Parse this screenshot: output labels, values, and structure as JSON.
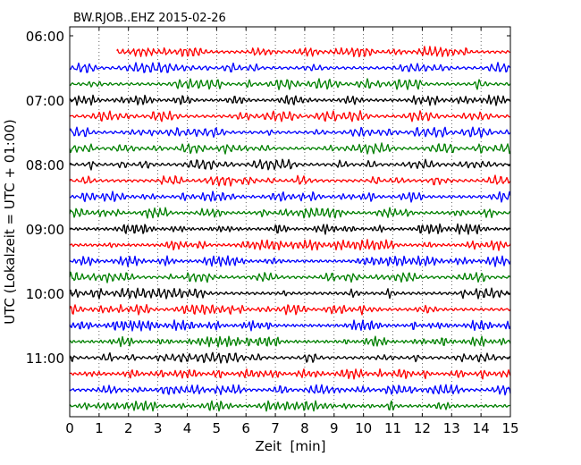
{
  "chart_data": {
    "type": "line",
    "title": "BW.RJOB..EHZ 2015-02-26",
    "xlabel": "Zeit  [min]",
    "ylabel": "UTC (Lokalzeit = UTC + 01:00)",
    "xlim": [
      0,
      15
    ],
    "x_ticks": [
      "0",
      "1",
      "2",
      "3",
      "4",
      "5",
      "6",
      "7",
      "8",
      "9",
      "10",
      "11",
      "12",
      "13",
      "14",
      "15"
    ],
    "y_ticks": [
      "06:00",
      "07:00",
      "08:00",
      "09:00",
      "10:00",
      "11:00"
    ],
    "grid": true,
    "trace_interval_minutes": 15,
    "trace_colors": [
      "#ff0000",
      "#0000ff",
      "#008000",
      "#000000"
    ],
    "series": [
      {
        "start": "06:00",
        "x_start": 1.6,
        "x_end": 15,
        "color": "#ff0000"
      },
      {
        "start": "06:15",
        "x_start": 0,
        "x_end": 15,
        "color": "#0000ff"
      },
      {
        "start": "06:30",
        "x_start": 0,
        "x_end": 15,
        "color": "#008000"
      },
      {
        "start": "06:45",
        "x_start": 0,
        "x_end": 15,
        "color": "#000000"
      },
      {
        "start": "07:00",
        "x_start": 0,
        "x_end": 15,
        "color": "#ff0000"
      },
      {
        "start": "07:15",
        "x_start": 0,
        "x_end": 15,
        "color": "#0000ff"
      },
      {
        "start": "07:30",
        "x_start": 0,
        "x_end": 15,
        "color": "#008000"
      },
      {
        "start": "07:45",
        "x_start": 0,
        "x_end": 15,
        "color": "#000000"
      },
      {
        "start": "08:00",
        "x_start": 0,
        "x_end": 15,
        "color": "#ff0000"
      },
      {
        "start": "08:15",
        "x_start": 0,
        "x_end": 15,
        "color": "#0000ff"
      },
      {
        "start": "08:30",
        "x_start": 0,
        "x_end": 15,
        "color": "#008000"
      },
      {
        "start": "08:45",
        "x_start": 0,
        "x_end": 15,
        "color": "#000000"
      },
      {
        "start": "09:00",
        "x_start": 0,
        "x_end": 15,
        "color": "#ff0000"
      },
      {
        "start": "09:15",
        "x_start": 0,
        "x_end": 15,
        "color": "#0000ff"
      },
      {
        "start": "09:30",
        "x_start": 0,
        "x_end": 15,
        "color": "#008000"
      },
      {
        "start": "09:45",
        "x_start": 0,
        "x_end": 15,
        "color": "#000000"
      },
      {
        "start": "10:00",
        "x_start": 0,
        "x_end": 15,
        "color": "#ff0000"
      },
      {
        "start": "10:15",
        "x_start": 0,
        "x_end": 15,
        "color": "#0000ff"
      },
      {
        "start": "10:30",
        "x_start": 0,
        "x_end": 15,
        "color": "#008000"
      },
      {
        "start": "10:45",
        "x_start": 0,
        "x_end": 15,
        "color": "#000000"
      },
      {
        "start": "11:00",
        "x_start": 0,
        "x_end": 15,
        "color": "#ff0000"
      },
      {
        "start": "11:15",
        "x_start": 0,
        "x_end": 15,
        "color": "#0000ff"
      },
      {
        "start": "11:30",
        "x_start": 0,
        "x_end": 15,
        "color": "#008000"
      }
    ]
  }
}
